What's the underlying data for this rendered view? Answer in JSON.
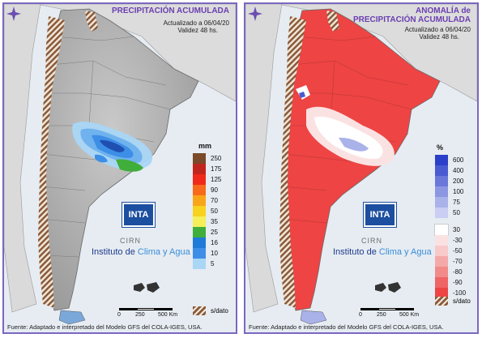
{
  "left": {
    "title_line1": "PRECIPITACIÓN ACUMULADA",
    "updated": "Actualizado a 06/04/20",
    "validity": "Validez 48 hs.",
    "unit": "mm",
    "legend": [
      {
        "label": "250",
        "color": "#7a4a2a"
      },
      {
        "label": "175",
        "color": "#c0261e"
      },
      {
        "label": "125",
        "color": "#f02a1a"
      },
      {
        "label": "90",
        "color": "#f76a1c"
      },
      {
        "label": "70",
        "color": "#f9a51a"
      },
      {
        "label": "50",
        "color": "#f7d21e"
      },
      {
        "label": "35",
        "color": "#f5ef5a"
      },
      {
        "label": "25",
        "color": "#3fae3a"
      },
      {
        "label": "16",
        "color": "#1f7ad8"
      },
      {
        "label": "10",
        "color": "#3d8ee6"
      },
      {
        "label": "5",
        "color": "#a9d6f5"
      }
    ],
    "nodata_label": "s/dato",
    "scale": [
      "0",
      "250",
      "500 Km"
    ],
    "footer": "Fuente: Adaptado e interpretado del Modelo GFS del COLA-IGES, USA."
  },
  "right": {
    "title_line1": "ANOMALÍA de",
    "title_line2": "PRECIPITACIÓN ACUMULADA",
    "updated": "Actualizado a 06/04/20",
    "validity": "Validez 48 hs.",
    "unit": "%",
    "legend_pos": [
      {
        "label": "600",
        "color": "#2b3fc9"
      },
      {
        "label": "400",
        "color": "#4a5bd2"
      },
      {
        "label": "200",
        "color": "#6a78da"
      },
      {
        "label": "100",
        "color": "#8c97e2"
      },
      {
        "label": "75",
        "color": "#aab2ea"
      },
      {
        "label": "50",
        "color": "#c9cef2"
      }
    ],
    "legend_neg": [
      {
        "label": "30",
        "color": "#ffffff"
      },
      {
        "label": "-30",
        "color": "#fbe2e2"
      },
      {
        "label": "-50",
        "color": "#f8c9c9"
      },
      {
        "label": "-70",
        "color": "#f5a8a8"
      },
      {
        "label": "-80",
        "color": "#f28a8a"
      },
      {
        "label": "-90",
        "color": "#ef6464"
      },
      {
        "label": "-100",
        "color": "#ee4444"
      }
    ],
    "nodata_label": "s/dato",
    "scale": [
      "0",
      "250",
      "500 Km"
    ],
    "footer": "Fuente: Adaptado e interpretado del Modelo GFS del COLA-IGES, USA."
  },
  "branding": {
    "inta": "INTA",
    "cirn": "CIRN",
    "institute_prefix": "Instituto de ",
    "institute_highlight": "Clima y Agua"
  }
}
